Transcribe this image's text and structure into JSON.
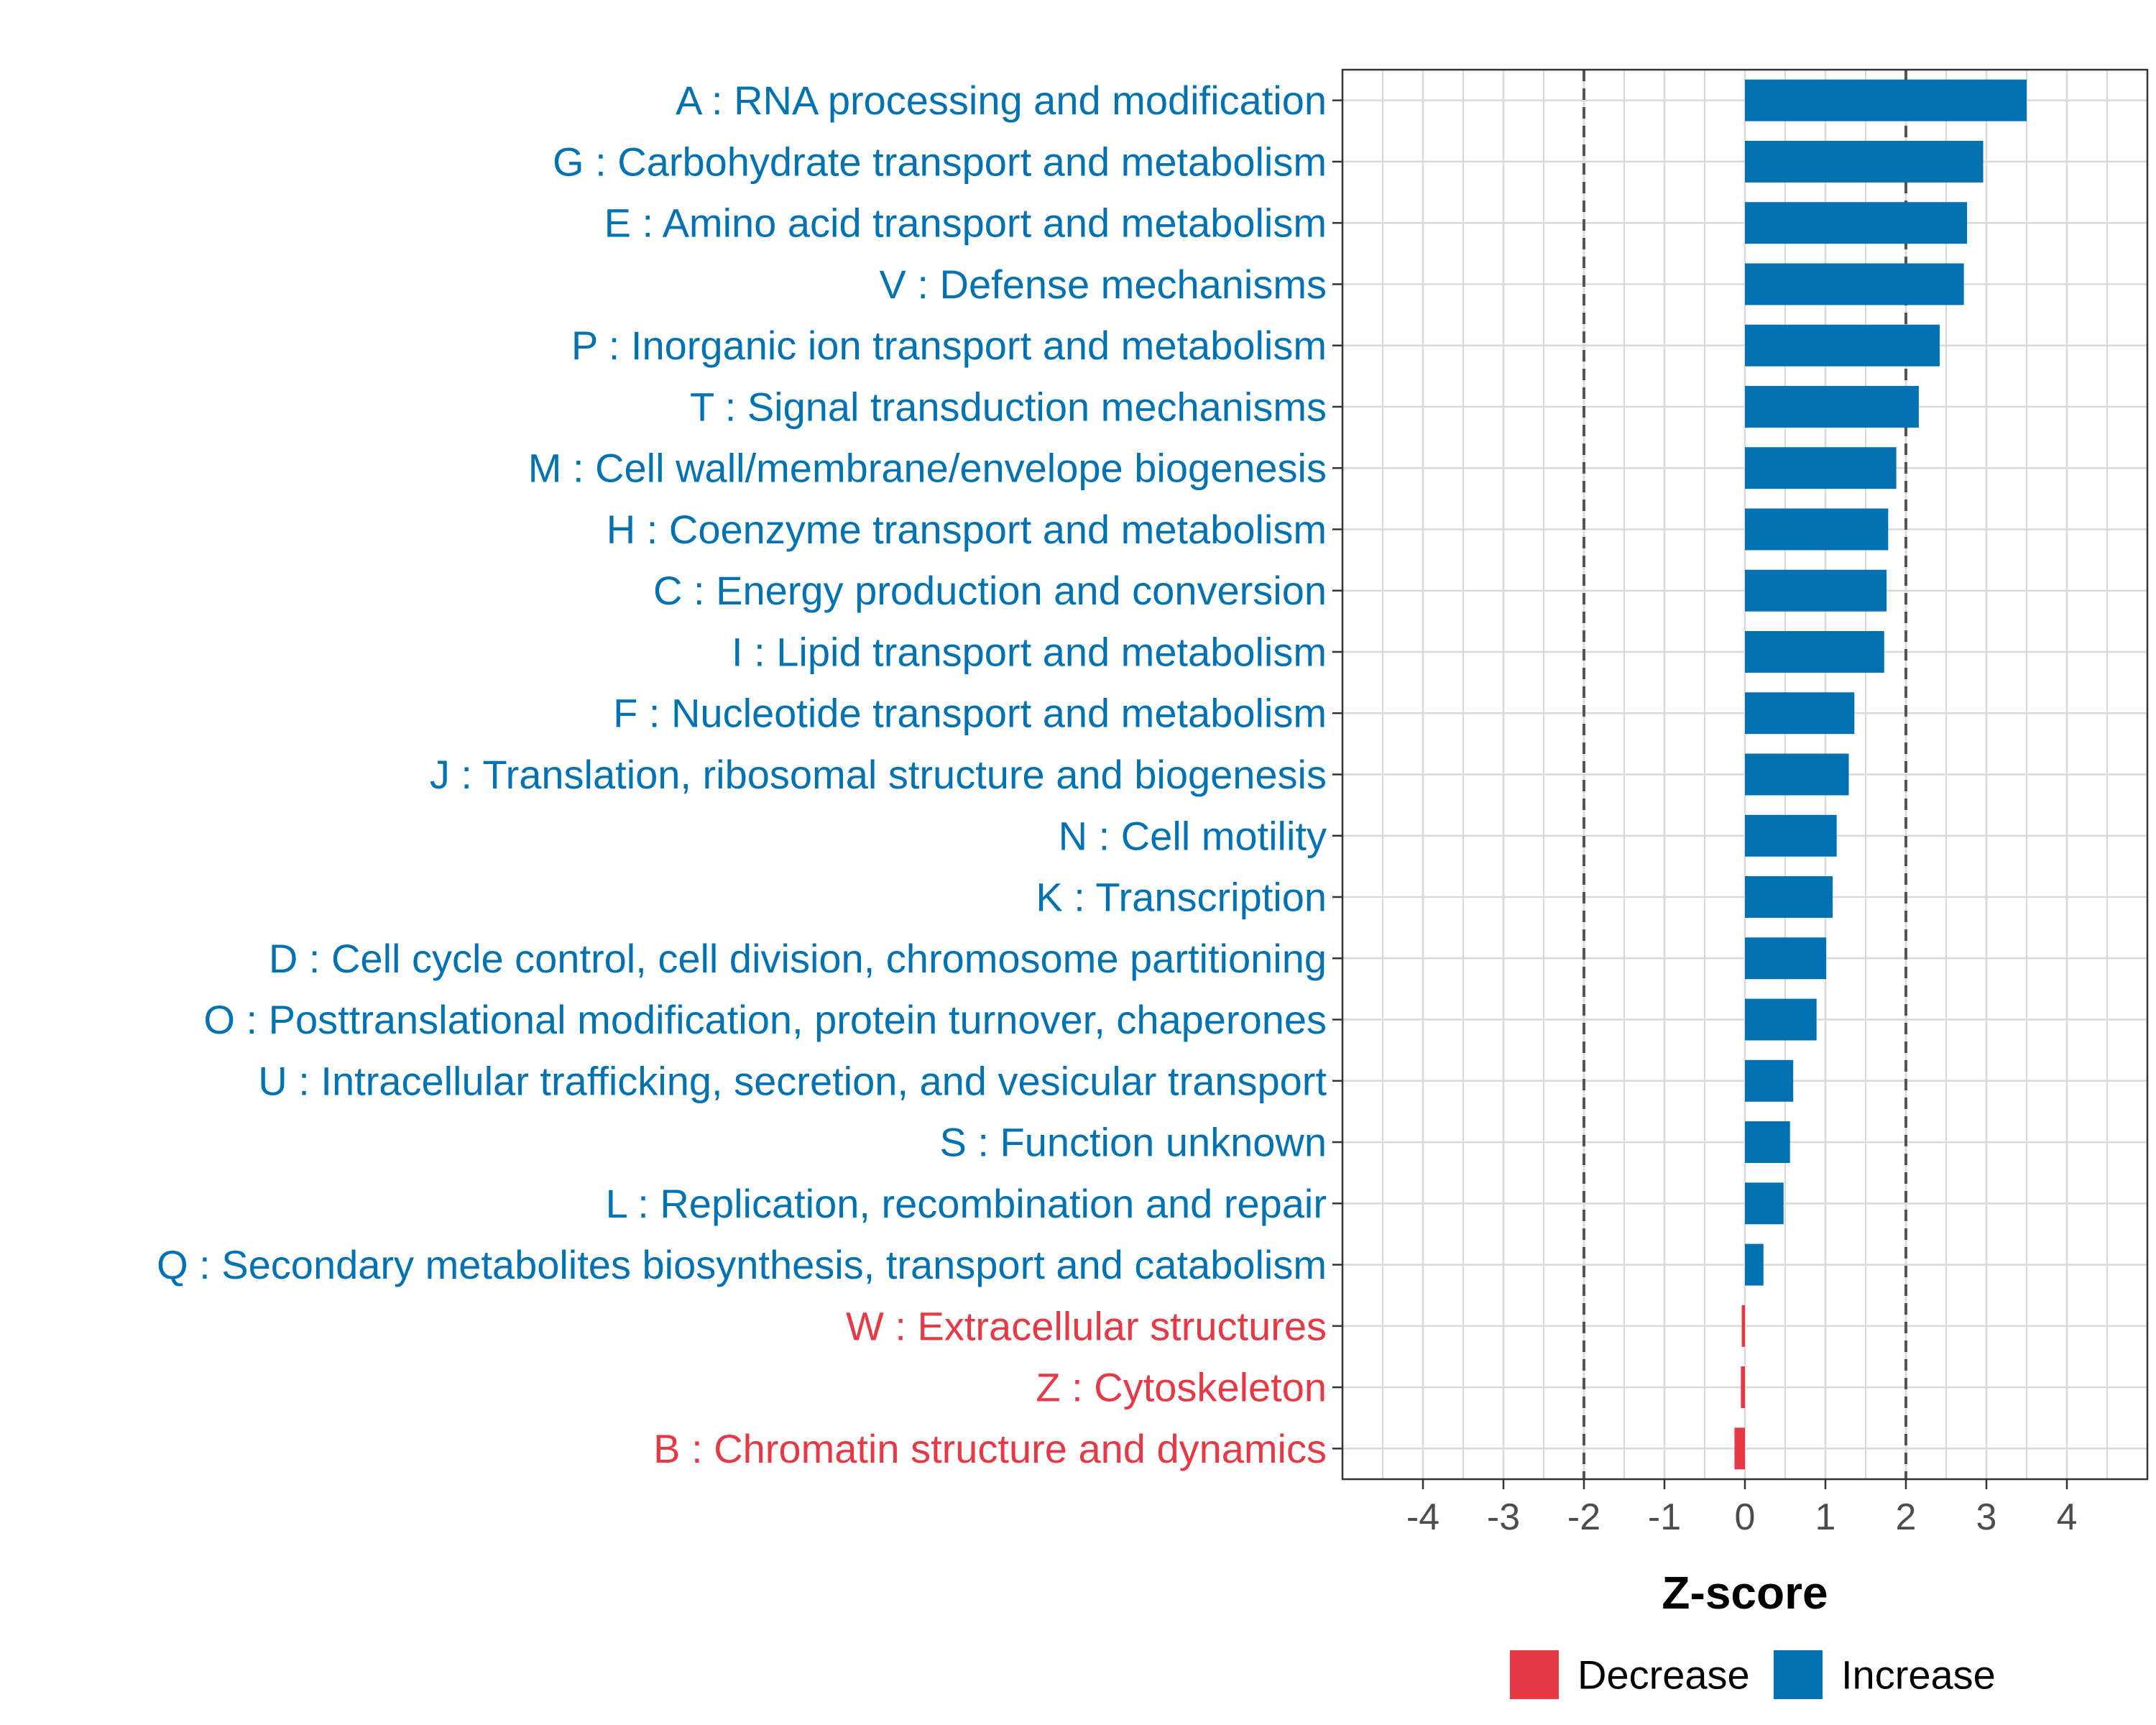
{
  "chart_data": {
    "type": "bar",
    "orientation": "horizontal",
    "title": "",
    "xlabel": "Z-score",
    "ylabel": "",
    "xlim": [
      -5,
      5
    ],
    "xticks": [
      "-4",
      "-3",
      "-2",
      "-1",
      "0",
      "1",
      "2",
      "3",
      "4"
    ],
    "xtick_values": [
      -4,
      -3,
      -2,
      -1,
      0,
      1,
      2,
      3,
      4
    ],
    "reference_lines": [
      -2,
      2
    ],
    "grid": true,
    "categories": [
      "A : RNA processing and modification",
      "G : Carbohydrate transport and metabolism",
      "E : Amino acid transport and metabolism",
      "V : Defense mechanisms",
      "P : Inorganic ion transport and metabolism",
      "T : Signal transduction mechanisms",
      "M : Cell wall/membrane/envelope biogenesis",
      "H : Coenzyme transport and metabolism",
      "C : Energy production and conversion",
      "I : Lipid transport and metabolism",
      "F : Nucleotide transport and metabolism",
      "J : Translation, ribosomal structure and biogenesis",
      "N : Cell motility",
      "K : Transcription",
      "D : Cell cycle control, cell division, chromosome partitioning",
      "O : Posttranslational modification, protein turnover, chaperones",
      "U : Intracellular trafficking, secretion, and vesicular transport",
      "S : Function unknown",
      "L : Replication, recombination and repair",
      "Q : Secondary metabolites biosynthesis, transport and catabolism",
      "W : Extracellular structures",
      "Z : Cytoskeleton",
      "B : Chromatin structure and dynamics"
    ],
    "values": [
      3.5,
      2.96,
      2.76,
      2.72,
      2.42,
      2.16,
      1.88,
      1.78,
      1.76,
      1.73,
      1.36,
      1.29,
      1.14,
      1.09,
      1.01,
      0.89,
      0.6,
      0.56,
      0.48,
      0.23,
      -0.04,
      -0.05,
      -0.13
    ],
    "groups": [
      "Increase",
      "Increase",
      "Increase",
      "Increase",
      "Increase",
      "Increase",
      "Increase",
      "Increase",
      "Increase",
      "Increase",
      "Increase",
      "Increase",
      "Increase",
      "Increase",
      "Increase",
      "Increase",
      "Increase",
      "Increase",
      "Increase",
      "Increase",
      "Decrease",
      "Decrease",
      "Decrease"
    ],
    "legend": {
      "position": "bottom",
      "entries": [
        {
          "name": "Decrease",
          "color": "#E63946"
        },
        {
          "name": "Increase",
          "color": "#0072B2"
        }
      ]
    }
  },
  "colors": {
    "increase": "#0072B2",
    "decrease": "#E63946",
    "grid": "#D9D9D9",
    "reference_line": "#555555",
    "tick_text": "#4D4D4D"
  }
}
